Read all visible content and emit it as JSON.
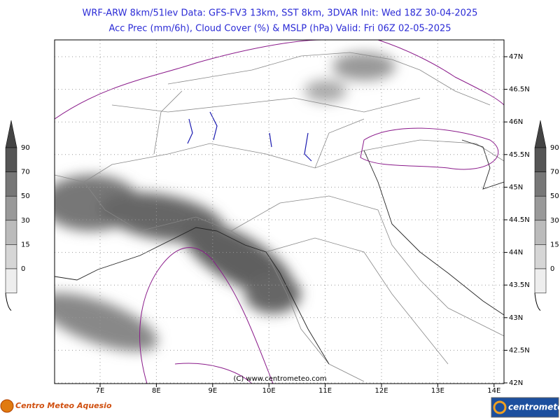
{
  "header": {
    "line1": "WRF-ARW 8km/51lev  Data: GFS-FV3 13km, SST 8km, 3DVAR  Init: Wed 18Z 30-04-2025",
    "line2": "Acc Prec (mm/6h), Cloud Cover (%) & MSLP (hPa)  Valid: Fri 06Z 02-05-2025"
  },
  "map": {
    "lat_labels": [
      "47N",
      "46.5N",
      "46N",
      "45.5N",
      "45N",
      "44.5N",
      "44N",
      "43.5N",
      "43N",
      "42.5N",
      "42N"
    ],
    "lon_labels": [
      "7E",
      "8E",
      "9E",
      "10E",
      "11E",
      "12E",
      "13E",
      "14E"
    ],
    "copyright": "(C) www.centrometeo.com"
  },
  "colorbars": {
    "left": [
      "90",
      "70",
      "50",
      "30",
      "15",
      "0"
    ],
    "right": [
      "90",
      "70",
      "50",
      "30",
      "15",
      "0"
    ]
  },
  "footer": {
    "left_logo": "Centro Meteo Aquesio",
    "right_logo": "centrometeo"
  }
}
